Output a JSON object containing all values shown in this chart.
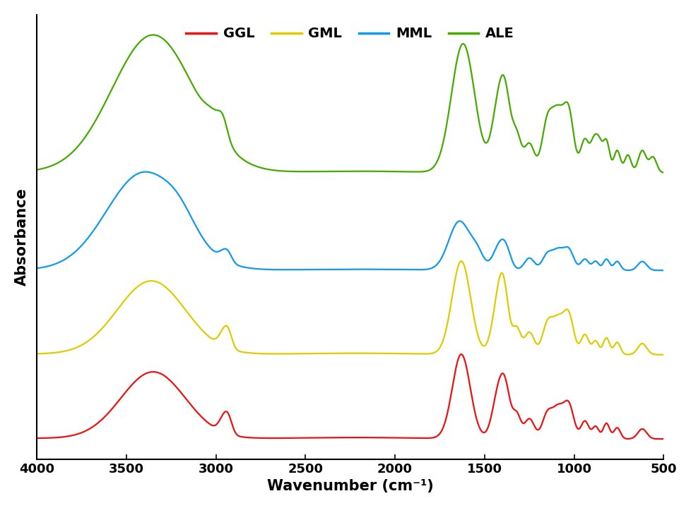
{
  "xlabel": "Wavenumber (cm⁻¹)",
  "ylabel": "Absorbance",
  "xlim": [
    4000,
    500
  ],
  "x_ticks": [
    4000,
    3500,
    3000,
    2500,
    2000,
    1500,
    1000,
    500
  ],
  "legend_labels": [
    "GGL",
    "GML",
    "MML",
    "ALE"
  ],
  "legend_colors": [
    "#ee1111",
    "#ddcc00",
    "#1199ee",
    "#44aa00"
  ],
  "line_width": 1.6,
  "offsets": [
    0.0,
    0.38,
    0.76,
    1.2
  ],
  "background_color": "#ffffff",
  "tick_fontsize": 13,
  "label_fontsize": 15,
  "legend_fontsize": 14
}
